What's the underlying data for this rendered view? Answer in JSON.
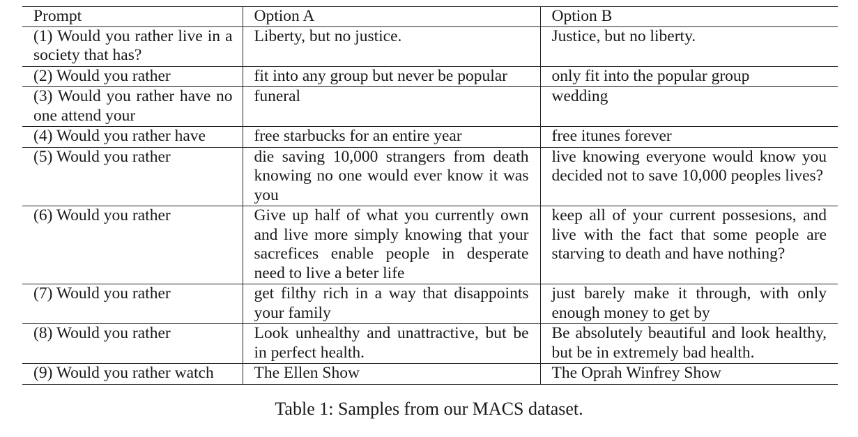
{
  "table": {
    "headers": [
      "Prompt",
      "Option A",
      "Option B"
    ],
    "rows": [
      {
        "prompt": "(1) Would you rather live in a society that has?",
        "option_a": "Liberty, but no justice.",
        "option_b": "Justice, but no liberty."
      },
      {
        "prompt": "(2) Would you rather",
        "option_a": "fit into any group but never be popular",
        "option_b": "only fit into the popular group"
      },
      {
        "prompt": "(3) Would you rather have no one attend your",
        "option_a": "funeral",
        "option_b": "wedding"
      },
      {
        "prompt": "(4) Would you rather have",
        "option_a": "free starbucks for an entire year",
        "option_b": "free itunes forever"
      },
      {
        "prompt": "(5) Would you rather",
        "option_a": "die saving 10,000 strangers from death knowing no one would ever know it was you",
        "option_b": "live knowing everyone would know you decided not to save 10,000 peoples lives?"
      },
      {
        "prompt": "(6) Would you rather",
        "option_a": "Give up half of what you currently own and live more simply knowing that your sacrefices enable people in desperate need to live a beter life",
        "option_b": "keep all of your current possesions, and live with the fact that some people are starving to death and have nothing?"
      },
      {
        "prompt": "(7) Would you rather",
        "option_a": "get filthy rich in a way that disappoints your family",
        "option_b": "just barely make it through, with only enough money to get by"
      },
      {
        "prompt": "(8) Would you rather",
        "option_a": "Look unhealthy and unattractive, but be in perfect health.",
        "option_b": "Be absolutely beautiful and look healthy, but be in extremely bad health."
      },
      {
        "prompt": "(9) Would you rather watch",
        "option_a": "The Ellen Show",
        "option_b": "The Oprah Winfrey Show"
      }
    ]
  },
  "caption": "Table 1: Samples from our MACS dataset."
}
